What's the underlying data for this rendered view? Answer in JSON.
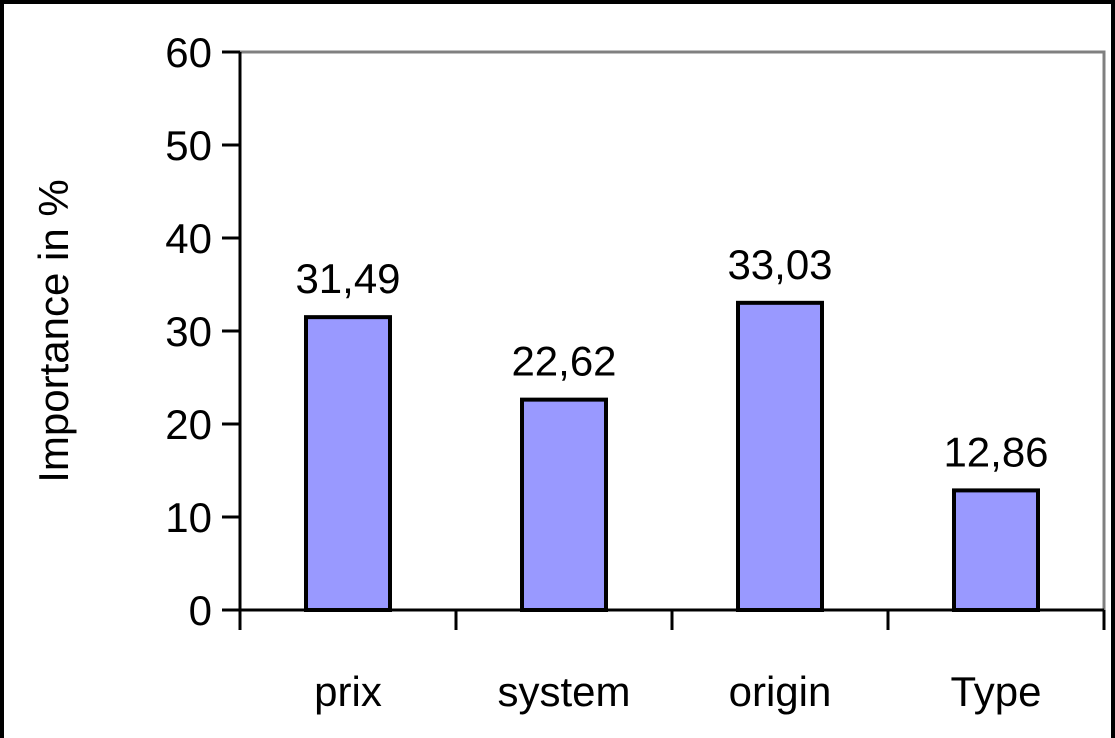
{
  "chart_data": {
    "type": "bar",
    "title": "",
    "xlabel": "",
    "ylabel": "Importance in %",
    "ylim": [
      0,
      60
    ],
    "yticks": [
      0,
      10,
      20,
      30,
      40,
      50,
      60
    ],
    "categories": [
      "prix",
      "system",
      "origin",
      "Type"
    ],
    "values": [
      31.49,
      22.62,
      33.03,
      12.86
    ],
    "data_labels": [
      "31,49",
      "22,62",
      "33,03",
      "12,86"
    ],
    "grid": false,
    "legend": "none",
    "colors": {
      "bar_fill": "#9999ff",
      "bar_stroke": "#000000",
      "plot_border": "#808080",
      "outer_frame": "#000000"
    }
  }
}
